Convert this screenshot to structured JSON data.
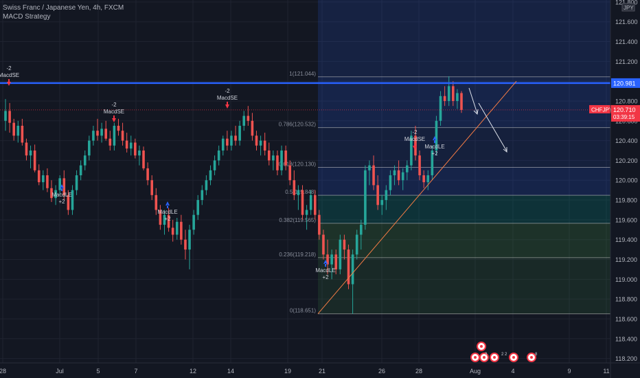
{
  "header": {
    "title": "Swiss Franc / Japanese Yen, 4h, FXCM",
    "strategy": "MACD Strategy"
  },
  "colors": {
    "bg": "#131722",
    "grid": "#1f2330",
    "up": "#26a69a",
    "down": "#ef5350",
    "axis_text": "#b2b5be",
    "hline": "#2962ff",
    "trend": "#f57c45",
    "price_tag": "#f23645",
    "arrow_up": "#2962ff",
    "arrow_down": "#f23645"
  },
  "chart_data": {
    "type": "candlestick",
    "symbol": "CHFJPY",
    "y_ticks": [
      "121.800",
      "121.600",
      "121.400",
      "121.200",
      "121.000",
      "120.800",
      "120.600",
      "120.400",
      "120.200",
      "120.000",
      "119.800",
      "119.600",
      "119.400",
      "119.200",
      "119.000",
      "118.800",
      "118.600",
      "118.400",
      "118.200"
    ],
    "y_tick_values": [
      121.8,
      121.6,
      121.4,
      121.2,
      121.0,
      120.8,
      120.6,
      120.4,
      120.2,
      120.0,
      119.8,
      119.6,
      119.4,
      119.2,
      119.0,
      118.8,
      118.6,
      118.4,
      118.2
    ],
    "x_ticks": [
      "28",
      "Jul",
      "5",
      "7",
      "12",
      "14",
      "19",
      "21",
      "26",
      "28",
      "Aug",
      "4",
      "9",
      "11"
    ],
    "currency_label": "JPY",
    "horizontal_line": {
      "value": 120.981,
      "label": "120.981"
    },
    "last_price": {
      "symbol": "CHFJPY",
      "value": "120.710",
      "countdown": "03:39:15"
    },
    "fibonacci": {
      "levels": [
        {
          "label": "1(121.044)",
          "value": 121.044
        },
        {
          "label": "0.786(120.532)",
          "value": 120.532
        },
        {
          "label": "0.618(120.130)",
          "value": 120.13
        },
        {
          "label": "0.5(119.848)",
          "value": 119.848
        },
        {
          "label": "0.382(119.565)",
          "value": 119.565
        },
        {
          "label": "0.236(119.218)",
          "value": 119.218
        },
        {
          "label": "0(118.651)",
          "value": 118.651
        }
      ]
    },
    "signals": [
      {
        "kind": "short",
        "name": "MacdSE",
        "qty": "-2"
      },
      {
        "kind": "long",
        "name": "MacdLE",
        "qty": "+2"
      },
      {
        "kind": "short",
        "name": "MacdSE",
        "qty": "-2"
      },
      {
        "kind": "long",
        "name": "MacdLE",
        "qty": "+2"
      },
      {
        "kind": "short",
        "name": "MacdSE",
        "qty": "-2"
      },
      {
        "kind": "long",
        "name": "MacdLE",
        "qty": "+2"
      },
      {
        "kind": "short",
        "name": "MacdSE",
        "qty": "-2"
      },
      {
        "kind": "long",
        "name": "MacdLE",
        "qty": "+2"
      }
    ],
    "events": [
      "3",
      "2",
      "2",
      "8"
    ],
    "candles": [
      [
        120.6,
        120.82,
        120.5,
        120.7
      ],
      [
        120.7,
        120.78,
        120.48,
        120.58
      ],
      [
        120.58,
        120.62,
        120.4,
        120.45
      ],
      [
        120.45,
        120.6,
        120.38,
        120.55
      ],
      [
        120.55,
        120.62,
        120.35,
        120.38
      ],
      [
        120.38,
        120.42,
        120.2,
        120.25
      ],
      [
        120.25,
        120.35,
        120.12,
        120.3
      ],
      [
        120.3,
        120.36,
        120.08,
        120.1
      ],
      [
        120.1,
        120.16,
        119.95,
        119.98
      ],
      [
        119.98,
        120.1,
        119.9,
        120.05
      ],
      [
        120.05,
        120.12,
        119.88,
        119.92
      ],
      [
        119.92,
        120.0,
        119.78,
        119.82
      ],
      [
        119.82,
        119.95,
        119.75,
        119.9
      ],
      [
        119.9,
        120.05,
        119.85,
        120.02
      ],
      [
        120.02,
        120.1,
        119.8,
        119.85
      ],
      [
        119.85,
        119.9,
        119.65,
        119.7
      ],
      [
        119.7,
        119.95,
        119.65,
        119.9
      ],
      [
        119.9,
        120.1,
        119.85,
        120.05
      ],
      [
        120.05,
        120.2,
        120.0,
        120.15
      ],
      [
        120.15,
        120.3,
        120.1,
        120.25
      ],
      [
        120.25,
        120.45,
        120.2,
        120.4
      ],
      [
        120.4,
        120.55,
        120.35,
        120.5
      ],
      [
        120.5,
        120.62,
        120.4,
        120.45
      ],
      [
        120.45,
        120.58,
        120.38,
        120.52
      ],
      [
        120.52,
        120.6,
        120.4,
        120.42
      ],
      [
        120.42,
        120.5,
        120.3,
        120.35
      ],
      [
        120.35,
        120.58,
        120.3,
        120.55
      ],
      [
        120.55,
        120.62,
        120.45,
        120.5
      ],
      [
        120.5,
        120.58,
        120.35,
        120.4
      ],
      [
        120.4,
        120.48,
        120.28,
        120.32
      ],
      [
        120.32,
        120.45,
        120.25,
        120.38
      ],
      [
        120.38,
        120.42,
        120.22,
        120.25
      ],
      [
        120.25,
        120.35,
        120.15,
        120.3
      ],
      [
        120.3,
        120.34,
        120.1,
        120.12
      ],
      [
        120.12,
        120.18,
        119.95,
        120.0
      ],
      [
        120.0,
        120.05,
        119.8,
        119.85
      ],
      [
        119.85,
        119.92,
        119.65,
        119.7
      ],
      [
        119.7,
        119.75,
        119.5,
        119.55
      ],
      [
        119.55,
        119.7,
        119.45,
        119.65
      ],
      [
        119.65,
        119.72,
        119.48,
        119.52
      ],
      [
        119.52,
        119.6,
        119.38,
        119.45
      ],
      [
        119.45,
        119.62,
        119.4,
        119.58
      ],
      [
        119.58,
        119.65,
        119.35,
        119.4
      ],
      [
        119.4,
        119.5,
        119.2,
        119.3
      ],
      [
        119.3,
        119.55,
        119.1,
        119.5
      ],
      [
        119.5,
        119.7,
        119.45,
        119.65
      ],
      [
        119.65,
        119.85,
        119.6,
        119.8
      ],
      [
        119.8,
        119.95,
        119.75,
        119.9
      ],
      [
        119.9,
        120.05,
        119.85,
        120.0
      ],
      [
        120.0,
        120.15,
        119.95,
        120.1
      ],
      [
        120.1,
        120.25,
        120.05,
        120.2
      ],
      [
        120.2,
        120.35,
        120.15,
        120.3
      ],
      [
        120.3,
        120.45,
        120.25,
        120.42
      ],
      [
        120.42,
        120.5,
        120.3,
        120.35
      ],
      [
        120.35,
        120.5,
        120.3,
        120.45
      ],
      [
        120.45,
        120.55,
        120.35,
        120.4
      ],
      [
        120.4,
        120.6,
        120.35,
        120.55
      ],
      [
        120.55,
        120.7,
        120.5,
        120.65
      ],
      [
        120.65,
        120.75,
        120.55,
        120.6
      ],
      [
        120.6,
        120.68,
        120.4,
        120.45
      ],
      [
        120.45,
        120.5,
        120.3,
        120.35
      ],
      [
        120.35,
        120.45,
        120.25,
        120.4
      ],
      [
        120.4,
        120.48,
        120.25,
        120.3
      ],
      [
        120.3,
        120.38,
        120.15,
        120.2
      ],
      [
        120.2,
        120.3,
        120.1,
        120.25
      ],
      [
        120.25,
        120.3,
        120.05,
        120.1
      ],
      [
        120.1,
        120.35,
        120.05,
        120.3
      ],
      [
        120.3,
        120.35,
        120.1,
        120.15
      ],
      [
        120.15,
        120.2,
        119.95,
        120.0
      ],
      [
        120.0,
        120.1,
        119.8,
        119.85
      ],
      [
        119.85,
        119.95,
        119.7,
        119.9
      ],
      [
        119.9,
        119.95,
        119.6,
        119.65
      ],
      [
        119.65,
        119.75,
        119.5,
        119.7
      ],
      [
        119.7,
        119.9,
        119.65,
        119.85
      ],
      [
        119.85,
        119.9,
        119.6,
        119.65
      ],
      [
        119.65,
        119.7,
        119.4,
        119.45
      ],
      [
        119.45,
        119.5,
        119.2,
        119.25
      ],
      [
        119.25,
        119.4,
        119.05,
        119.15
      ],
      [
        119.15,
        119.3,
        119.0,
        119.25
      ],
      [
        119.25,
        119.3,
        119.05,
        119.1
      ],
      [
        119.1,
        119.45,
        119.05,
        119.4
      ],
      [
        119.4,
        119.45,
        119.2,
        119.3
      ],
      [
        119.3,
        119.35,
        118.9,
        118.95
      ],
      [
        118.95,
        119.3,
        118.65,
        119.25
      ],
      [
        119.25,
        119.5,
        119.2,
        119.45
      ],
      [
        119.45,
        119.6,
        119.3,
        119.55
      ],
      [
        119.55,
        120.15,
        119.5,
        120.1
      ],
      [
        120.1,
        120.2,
        119.95,
        120.15
      ],
      [
        120.15,
        120.25,
        119.9,
        119.95
      ],
      [
        119.95,
        120.05,
        119.7,
        119.75
      ],
      [
        119.75,
        119.85,
        119.65,
        119.8
      ],
      [
        119.8,
        119.95,
        119.7,
        119.9
      ],
      [
        119.9,
        120.1,
        119.85,
        120.05
      ],
      [
        120.05,
        120.15,
        119.95,
        120.1
      ],
      [
        120.1,
        120.2,
        119.95,
        120.0
      ],
      [
        120.0,
        120.12,
        119.9,
        120.08
      ],
      [
        120.08,
        120.2,
        120.0,
        120.15
      ],
      [
        120.15,
        120.5,
        120.1,
        120.45
      ],
      [
        120.45,
        120.55,
        120.2,
        120.25
      ],
      [
        120.25,
        120.3,
        120.0,
        120.05
      ],
      [
        120.05,
        120.1,
        119.92,
        119.98
      ],
      [
        119.98,
        120.1,
        119.9,
        120.05
      ],
      [
        120.05,
        120.35,
        120.0,
        120.3
      ],
      [
        120.3,
        120.65,
        120.25,
        120.6
      ],
      [
        120.6,
        120.9,
        120.55,
        120.85
      ],
      [
        120.85,
        120.95,
        120.75,
        120.8
      ],
      [
        120.8,
        121.05,
        120.75,
        120.95
      ],
      [
        120.95,
        121.0,
        120.75,
        120.8
      ],
      [
        120.8,
        120.92,
        120.72,
        120.88
      ],
      [
        120.88,
        120.9,
        120.68,
        120.71
      ]
    ],
    "ylim": [
      118.1,
      121.82
    ]
  }
}
